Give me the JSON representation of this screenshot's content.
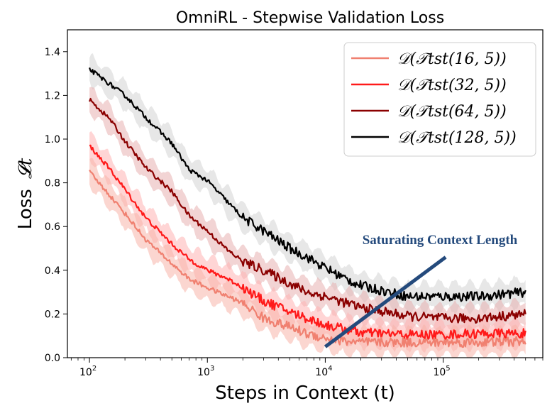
{
  "chart_data": {
    "type": "line",
    "title": "OmniRL - Stepwise Validation Loss",
    "xlabel": "Steps in Context (t)",
    "ylabel": "Loss",
    "ylabel_symbol": "𝓛t",
    "xscale": "log",
    "xlim": [
      65,
      700000
    ],
    "ylim": [
      0.0,
      1.5
    ],
    "xticks": [
      {
        "value": 100,
        "base": "10",
        "exp": "2"
      },
      {
        "value": 1000,
        "base": "10",
        "exp": "3"
      },
      {
        "value": 10000,
        "base": "10",
        "exp": "4"
      },
      {
        "value": 100000,
        "base": "10",
        "exp": "5"
      }
    ],
    "yticks": [
      "0.0",
      "0.2",
      "0.4",
      "0.6",
      "0.8",
      "1.0",
      "1.2",
      "1.4"
    ],
    "grid": false,
    "legend_position": "top-right",
    "series": [
      {
        "name": "𝒟(𝒯tst(16, 5))",
        "color": "#f08070",
        "band_color": "#f7b4aa",
        "x": [
          100,
          150,
          200,
          300,
          500,
          700,
          1000,
          1500,
          2000,
          3000,
          5000,
          7000,
          10000,
          15000,
          20000,
          50000,
          100000,
          200000,
          500000
        ],
        "y": [
          0.85,
          0.74,
          0.66,
          0.54,
          0.43,
          0.36,
          0.32,
          0.28,
          0.25,
          0.18,
          0.14,
          0.11,
          0.09,
          0.075,
          0.07,
          0.07,
          0.07,
          0.07,
          0.075
        ]
      },
      {
        "name": "𝒟(𝒯tst(32, 5))",
        "color": "#ff1a1a",
        "band_color": "#ffb3b3",
        "x": [
          100,
          150,
          200,
          300,
          500,
          700,
          1000,
          1500,
          2000,
          3000,
          5000,
          7000,
          10000,
          15000,
          20000,
          50000,
          100000,
          200000,
          500000
        ],
        "y": [
          0.97,
          0.86,
          0.77,
          0.64,
          0.52,
          0.45,
          0.4,
          0.36,
          0.32,
          0.26,
          0.21,
          0.18,
          0.15,
          0.13,
          0.115,
          0.105,
          0.105,
          0.11,
          0.11
        ]
      },
      {
        "name": "𝒟(𝒯tst(64, 5))",
        "color": "#8b0000",
        "band_color": "#e8b0b0",
        "x": [
          100,
          150,
          200,
          300,
          500,
          700,
          1000,
          1500,
          2000,
          3000,
          5000,
          7000,
          10000,
          15000,
          20000,
          50000,
          100000,
          200000,
          500000
        ],
        "y": [
          1.18,
          1.09,
          0.99,
          0.87,
          0.76,
          0.65,
          0.58,
          0.49,
          0.44,
          0.4,
          0.34,
          0.3,
          0.28,
          0.25,
          0.23,
          0.19,
          0.18,
          0.18,
          0.2
        ]
      },
      {
        "name": "𝒟(𝒯tst(128, 5))",
        "color": "#000000",
        "band_color": "#d4d4d4",
        "x": [
          100,
          150,
          200,
          300,
          500,
          700,
          1000,
          1500,
          2000,
          3000,
          5000,
          7000,
          10000,
          15000,
          20000,
          50000,
          100000,
          200000,
          500000
        ],
        "y": [
          1.32,
          1.25,
          1.2,
          1.1,
          0.98,
          0.86,
          0.81,
          0.71,
          0.64,
          0.58,
          0.5,
          0.46,
          0.41,
          0.36,
          0.33,
          0.28,
          0.28,
          0.28,
          0.3
        ]
      }
    ],
    "annotation": {
      "text": "Saturating Context Length",
      "color": "#244a7c",
      "line_from": {
        "x": 10000,
        "y": 0.05
      },
      "line_to": {
        "x": 105000,
        "y": 0.46
      }
    }
  }
}
